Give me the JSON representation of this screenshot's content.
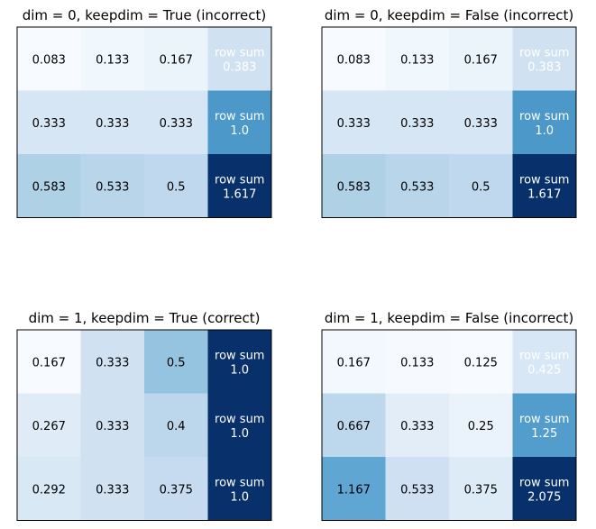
{
  "chart_data": [
    {
      "type": "heatmap",
      "title": "dim = 0, keepdim = True (incorrect)",
      "colormap": "Blues",
      "rows": [
        {
          "cells": [
            0.083,
            0.133,
            0.167
          ],
          "row_sum_label": "row sum",
          "row_sum": "0.383"
        },
        {
          "cells": [
            0.333,
            0.333,
            0.333
          ],
          "row_sum_label": "row sum",
          "row_sum": "1.0"
        },
        {
          "cells": [
            0.583,
            0.533,
            0.5
          ],
          "row_sum_label": "row sum",
          "row_sum": "1.617"
        }
      ],
      "cell_text": [
        [
          "0.083",
          "0.133",
          "0.167"
        ],
        [
          "0.333",
          "0.333",
          "0.333"
        ],
        [
          "0.583",
          "0.533",
          "0.5"
        ]
      ]
    },
    {
      "type": "heatmap",
      "title": "dim = 0, keepdim = False (incorrect)",
      "colormap": "Blues",
      "rows": [
        {
          "cells": [
            0.083,
            0.133,
            0.167
          ],
          "row_sum_label": "row sum",
          "row_sum": "0.383"
        },
        {
          "cells": [
            0.333,
            0.333,
            0.333
          ],
          "row_sum_label": "row sum",
          "row_sum": "1.0"
        },
        {
          "cells": [
            0.583,
            0.533,
            0.5
          ],
          "row_sum_label": "row sum",
          "row_sum": "1.617"
        }
      ],
      "cell_text": [
        [
          "0.083",
          "0.133",
          "0.167"
        ],
        [
          "0.333",
          "0.333",
          "0.333"
        ],
        [
          "0.583",
          "0.533",
          "0.5"
        ]
      ]
    },
    {
      "type": "heatmap",
      "title": "dim = 1, keepdim = True (correct)",
      "colormap": "Blues",
      "rows": [
        {
          "cells": [
            0.167,
            0.333,
            0.5
          ],
          "row_sum_label": "row sum",
          "row_sum": "1.0"
        },
        {
          "cells": [
            0.267,
            0.333,
            0.4
          ],
          "row_sum_label": "row sum",
          "row_sum": "1.0"
        },
        {
          "cells": [
            0.292,
            0.333,
            0.375
          ],
          "row_sum_label": "row sum",
          "row_sum": "1.0"
        }
      ],
      "cell_text": [
        [
          "0.167",
          "0.333",
          "0.5"
        ],
        [
          "0.267",
          "0.333",
          "0.4"
        ],
        [
          "0.292",
          "0.333",
          "0.375"
        ]
      ]
    },
    {
      "type": "heatmap",
      "title": "dim = 1, keepdim = False (incorrect)",
      "colormap": "Blues",
      "rows": [
        {
          "cells": [
            0.167,
            0.133,
            0.125
          ],
          "row_sum_label": "row sum",
          "row_sum": "0.425"
        },
        {
          "cells": [
            0.667,
            0.333,
            0.25
          ],
          "row_sum_label": "row sum",
          "row_sum": "1.25"
        },
        {
          "cells": [
            1.167,
            0.533,
            0.375
          ],
          "row_sum_label": "row sum",
          "row_sum": "2.075"
        }
      ],
      "cell_text": [
        [
          "0.167",
          "0.133",
          "0.125"
        ],
        [
          "0.667",
          "0.333",
          "0.25"
        ],
        [
          "1.167",
          "0.533",
          "0.375"
        ]
      ]
    }
  ]
}
